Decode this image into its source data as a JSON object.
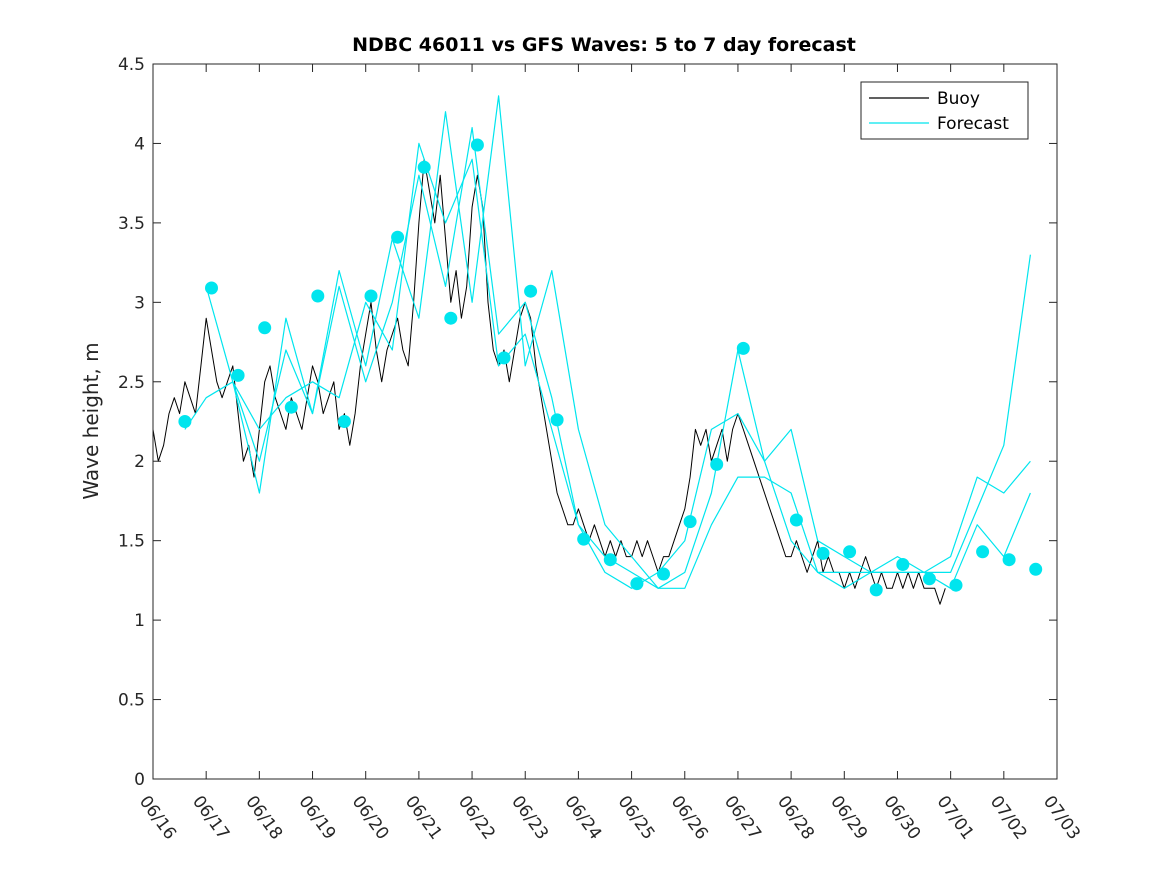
{
  "chart_data": {
    "type": "line",
    "title": "NDBC 46011 vs GFS Waves: 5 to 7 day forecast",
    "xlabel": "",
    "ylabel": "Wave height, m",
    "xlim": [
      "06/16",
      "07/03"
    ],
    "ylim": [
      0,
      4.5
    ],
    "yticks": [
      "0",
      "0.5",
      "1",
      "1.5",
      "2",
      "2.5",
      "3",
      "3.5",
      "4",
      "4.5"
    ],
    "xticks": [
      "06/16",
      "06/17",
      "06/18",
      "06/19",
      "06/20",
      "06/21",
      "06/22",
      "06/23",
      "06/24",
      "06/25",
      "06/26",
      "06/27",
      "06/28",
      "06/29",
      "06/30",
      "07/01",
      "07/02",
      "07/03"
    ],
    "grid": false,
    "legend_position": "top-right",
    "legend": [
      {
        "label": "Buoy",
        "color": "#000000"
      },
      {
        "label": "Forecast",
        "color": "#00e5ee"
      }
    ],
    "series": [
      {
        "name": "Buoy",
        "color": "#000000",
        "points": [
          [
            0.0,
            2.2
          ],
          [
            0.1,
            2.0
          ],
          [
            0.2,
            2.1
          ],
          [
            0.3,
            2.3
          ],
          [
            0.4,
            2.4
          ],
          [
            0.5,
            2.3
          ],
          [
            0.6,
            2.5
          ],
          [
            0.7,
            2.4
          ],
          [
            0.8,
            2.3
          ],
          [
            0.9,
            2.6
          ],
          [
            1.0,
            2.9
          ],
          [
            1.1,
            2.7
          ],
          [
            1.2,
            2.5
          ],
          [
            1.3,
            2.4
          ],
          [
            1.4,
            2.5
          ],
          [
            1.5,
            2.6
          ],
          [
            1.6,
            2.3
          ],
          [
            1.7,
            2.0
          ],
          [
            1.8,
            2.1
          ],
          [
            1.9,
            1.9
          ],
          [
            2.0,
            2.2
          ],
          [
            2.1,
            2.5
          ],
          [
            2.2,
            2.6
          ],
          [
            2.3,
            2.4
          ],
          [
            2.4,
            2.3
          ],
          [
            2.5,
            2.2
          ],
          [
            2.6,
            2.4
          ],
          [
            2.7,
            2.3
          ],
          [
            2.8,
            2.2
          ],
          [
            2.9,
            2.4
          ],
          [
            3.0,
            2.6
          ],
          [
            3.1,
            2.5
          ],
          [
            3.2,
            2.3
          ],
          [
            3.3,
            2.4
          ],
          [
            3.4,
            2.5
          ],
          [
            3.5,
            2.2
          ],
          [
            3.6,
            2.3
          ],
          [
            3.7,
            2.1
          ],
          [
            3.8,
            2.3
          ],
          [
            3.9,
            2.6
          ],
          [
            4.0,
            2.8
          ],
          [
            4.1,
            3.0
          ],
          [
            4.2,
            2.7
          ],
          [
            4.3,
            2.5
          ],
          [
            4.4,
            2.7
          ],
          [
            4.5,
            2.8
          ],
          [
            4.6,
            2.9
          ],
          [
            4.7,
            2.7
          ],
          [
            4.8,
            2.6
          ],
          [
            4.9,
            3.0
          ],
          [
            5.0,
            3.5
          ],
          [
            5.1,
            3.9
          ],
          [
            5.2,
            3.7
          ],
          [
            5.3,
            3.5
          ],
          [
            5.4,
            3.8
          ],
          [
            5.5,
            3.4
          ],
          [
            5.6,
            3.0
          ],
          [
            5.7,
            3.2
          ],
          [
            5.8,
            2.9
          ],
          [
            5.9,
            3.1
          ],
          [
            6.0,
            3.6
          ],
          [
            6.1,
            3.8
          ],
          [
            6.2,
            3.6
          ],
          [
            6.3,
            3.0
          ],
          [
            6.4,
            2.7
          ],
          [
            6.5,
            2.6
          ],
          [
            6.6,
            2.7
          ],
          [
            6.7,
            2.5
          ],
          [
            6.8,
            2.7
          ],
          [
            6.9,
            2.9
          ],
          [
            7.0,
            3.0
          ],
          [
            7.1,
            2.9
          ],
          [
            7.2,
            2.6
          ],
          [
            7.3,
            2.4
          ],
          [
            7.4,
            2.2
          ],
          [
            7.5,
            2.0
          ],
          [
            7.6,
            1.8
          ],
          [
            7.7,
            1.7
          ],
          [
            7.8,
            1.6
          ],
          [
            7.9,
            1.6
          ],
          [
            8.0,
            1.7
          ],
          [
            8.1,
            1.6
          ],
          [
            8.2,
            1.5
          ],
          [
            8.3,
            1.6
          ],
          [
            8.4,
            1.5
          ],
          [
            8.5,
            1.4
          ],
          [
            8.6,
            1.5
          ],
          [
            8.7,
            1.4
          ],
          [
            8.8,
            1.5
          ],
          [
            8.9,
            1.4
          ],
          [
            9.0,
            1.4
          ],
          [
            9.1,
            1.5
          ],
          [
            9.2,
            1.4
          ],
          [
            9.3,
            1.5
          ],
          [
            9.4,
            1.4
          ],
          [
            9.5,
            1.3
          ],
          [
            9.6,
            1.4
          ],
          [
            9.7,
            1.4
          ],
          [
            9.8,
            1.5
          ],
          [
            9.9,
            1.6
          ],
          [
            10.0,
            1.7
          ],
          [
            10.1,
            1.9
          ],
          [
            10.2,
            2.2
          ],
          [
            10.3,
            2.1
          ],
          [
            10.4,
            2.2
          ],
          [
            10.5,
            2.0
          ],
          [
            10.6,
            2.1
          ],
          [
            10.7,
            2.2
          ],
          [
            10.8,
            2.0
          ],
          [
            10.9,
            2.2
          ],
          [
            11.0,
            2.3
          ],
          [
            11.1,
            2.2
          ],
          [
            11.2,
            2.1
          ],
          [
            11.3,
            2.0
          ],
          [
            11.4,
            1.9
          ],
          [
            11.5,
            1.8
          ],
          [
            11.6,
            1.7
          ],
          [
            11.7,
            1.6
          ],
          [
            11.8,
            1.5
          ],
          [
            11.9,
            1.4
          ],
          [
            12.0,
            1.4
          ],
          [
            12.1,
            1.5
          ],
          [
            12.2,
            1.4
          ],
          [
            12.3,
            1.3
          ],
          [
            12.4,
            1.4
          ],
          [
            12.5,
            1.5
          ],
          [
            12.6,
            1.3
          ],
          [
            12.7,
            1.4
          ],
          [
            12.8,
            1.3
          ],
          [
            12.9,
            1.3
          ],
          [
            13.0,
            1.2
          ],
          [
            13.1,
            1.3
          ],
          [
            13.2,
            1.2
          ],
          [
            13.3,
            1.3
          ],
          [
            13.4,
            1.4
          ],
          [
            13.5,
            1.3
          ],
          [
            13.6,
            1.2
          ],
          [
            13.7,
            1.3
          ],
          [
            13.8,
            1.2
          ],
          [
            13.9,
            1.2
          ],
          [
            14.0,
            1.3
          ],
          [
            14.1,
            1.2
          ],
          [
            14.2,
            1.3
          ],
          [
            14.3,
            1.2
          ],
          [
            14.4,
            1.3
          ],
          [
            14.5,
            1.2
          ],
          [
            14.6,
            1.2
          ],
          [
            14.7,
            1.2
          ],
          [
            14.8,
            1.1
          ],
          [
            14.9,
            1.2
          ]
        ]
      },
      {
        "name": "Forecast",
        "color": "#00e5ee",
        "points": [
          [
            0.6,
            2.2
          ],
          [
            1.0,
            2.4
          ],
          [
            1.5,
            2.5
          ],
          [
            2.0,
            2.0
          ],
          [
            2.5,
            2.7
          ],
          [
            3.0,
            2.3
          ],
          [
            3.5,
            3.2
          ],
          [
            4.0,
            2.6
          ],
          [
            4.5,
            3.4
          ],
          [
            5.0,
            2.9
          ],
          [
            5.5,
            4.2
          ],
          [
            6.0,
            3.0
          ],
          [
            6.5,
            4.3
          ],
          [
            7.0,
            2.6
          ],
          [
            7.5,
            3.2
          ],
          [
            8.0,
            2.2
          ],
          [
            8.5,
            1.6
          ],
          [
            9.0,
            1.4
          ],
          [
            9.5,
            1.2
          ],
          [
            10.0,
            1.2
          ],
          [
            10.5,
            1.6
          ],
          [
            11.0,
            1.9
          ],
          [
            11.5,
            1.9
          ],
          [
            12.0,
            1.8
          ],
          [
            12.5,
            1.3
          ],
          [
            13.0,
            1.3
          ],
          [
            13.5,
            1.3
          ],
          [
            14.0,
            1.3
          ],
          [
            14.5,
            1.3
          ],
          [
            15.0,
            1.3
          ],
          [
            15.5,
            1.7
          ],
          [
            16.0,
            2.1
          ],
          [
            16.5,
            3.3
          ]
        ]
      },
      {
        "name": "Forecast",
        "color": "#00e5ee",
        "points": [
          [
            1.0,
            3.1
          ],
          [
            1.5,
            2.5
          ],
          [
            2.0,
            1.8
          ],
          [
            2.5,
            2.9
          ],
          [
            3.0,
            2.3
          ],
          [
            3.5,
            3.1
          ],
          [
            4.0,
            2.5
          ],
          [
            4.5,
            3.0
          ],
          [
            5.0,
            3.8
          ],
          [
            5.5,
            3.1
          ],
          [
            6.0,
            4.1
          ],
          [
            6.5,
            2.8
          ],
          [
            7.0,
            3.0
          ],
          [
            7.5,
            2.4
          ],
          [
            8.0,
            1.6
          ],
          [
            8.5,
            1.3
          ],
          [
            9.0,
            1.2
          ],
          [
            9.5,
            1.3
          ],
          [
            10.0,
            1.5
          ],
          [
            10.5,
            2.2
          ],
          [
            11.0,
            2.3
          ],
          [
            11.5,
            2.0
          ],
          [
            12.0,
            2.2
          ],
          [
            12.5,
            1.5
          ],
          [
            13.0,
            1.4
          ],
          [
            13.5,
            1.3
          ],
          [
            14.0,
            1.3
          ],
          [
            14.5,
            1.3
          ],
          [
            15.0,
            1.4
          ],
          [
            15.5,
            1.9
          ],
          [
            16.0,
            1.8
          ],
          [
            16.5,
            2.0
          ]
        ]
      },
      {
        "name": "Forecast",
        "color": "#00e5ee",
        "points": [
          [
            1.5,
            2.5
          ],
          [
            2.0,
            2.2
          ],
          [
            2.5,
            2.4
          ],
          [
            3.0,
            2.5
          ],
          [
            3.5,
            2.4
          ],
          [
            4.0,
            3.0
          ],
          [
            4.5,
            2.7
          ],
          [
            5.0,
            4.0
          ],
          [
            5.5,
            3.5
          ],
          [
            6.0,
            3.9
          ],
          [
            6.5,
            2.6
          ],
          [
            7.0,
            2.8
          ],
          [
            7.5,
            2.2
          ],
          [
            8.0,
            1.6
          ],
          [
            8.5,
            1.4
          ],
          [
            9.0,
            1.3
          ],
          [
            9.5,
            1.2
          ],
          [
            10.0,
            1.3
          ],
          [
            10.5,
            1.8
          ],
          [
            11.0,
            2.7
          ],
          [
            11.5,
            2.0
          ],
          [
            12.0,
            1.5
          ],
          [
            12.5,
            1.3
          ],
          [
            13.0,
            1.2
          ],
          [
            13.5,
            1.3
          ],
          [
            14.0,
            1.4
          ],
          [
            14.5,
            1.3
          ],
          [
            15.0,
            1.2
          ],
          [
            15.5,
            1.6
          ],
          [
            16.0,
            1.4
          ],
          [
            16.5,
            1.8
          ]
        ]
      }
    ],
    "markers": [
      [
        0.6,
        2.25
      ],
      [
        1.1,
        3.09
      ],
      [
        1.6,
        2.54
      ],
      [
        2.1,
        2.84
      ],
      [
        2.6,
        2.34
      ],
      [
        3.1,
        3.04
      ],
      [
        3.6,
        2.25
      ],
      [
        4.1,
        3.04
      ],
      [
        4.6,
        3.41
      ],
      [
        5.1,
        3.85
      ],
      [
        5.6,
        2.9
      ],
      [
        6.1,
        3.99
      ],
      [
        6.6,
        2.65
      ],
      [
        7.1,
        3.07
      ],
      [
        7.6,
        2.26
      ],
      [
        8.1,
        1.51
      ],
      [
        8.6,
        1.38
      ],
      [
        9.1,
        1.23
      ],
      [
        9.6,
        1.29
      ],
      [
        10.1,
        1.62
      ],
      [
        10.6,
        1.98
      ],
      [
        11.1,
        2.71
      ],
      [
        12.1,
        1.63
      ],
      [
        12.6,
        1.42
      ],
      [
        13.1,
        1.43
      ],
      [
        13.6,
        1.19
      ],
      [
        14.1,
        1.35
      ],
      [
        14.6,
        1.26
      ],
      [
        15.1,
        1.22
      ],
      [
        15.6,
        1.43
      ],
      [
        16.1,
        1.38
      ],
      [
        16.6,
        1.32
      ]
    ],
    "x_units": "days since 06/16 on the x axis"
  }
}
